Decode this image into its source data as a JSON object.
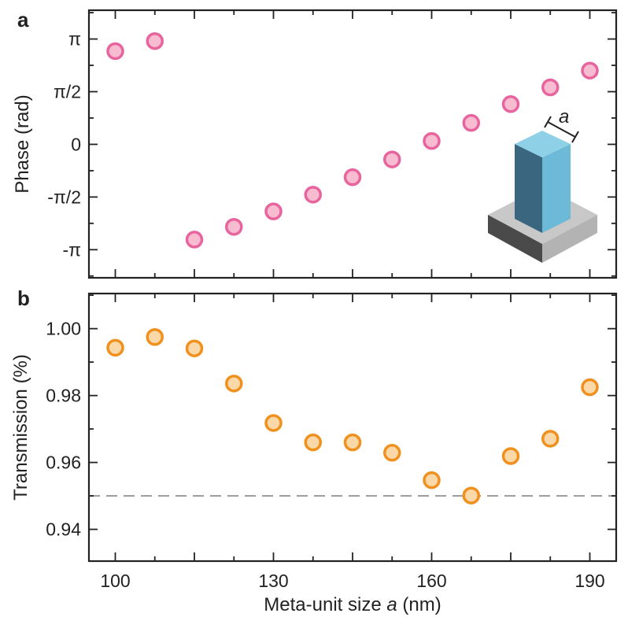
{
  "chart_data": [
    {
      "panel_label": "a",
      "type": "scatter",
      "xlabel": "",
      "ylabel": "Phase (rad)",
      "xlim": [
        95,
        195
      ],
      "ylim": [
        -3.98,
        4.0
      ],
      "yticks": [
        {
          "value": 3.14159,
          "label": "π"
        },
        {
          "value": 1.5708,
          "label": "π/2"
        },
        {
          "value": 0,
          "label": "0"
        },
        {
          "value": -1.5708,
          "label": "-π/2"
        },
        {
          "value": -3.14159,
          "label": "-π"
        }
      ],
      "series": [
        {
          "marker_color": "#e8649e",
          "marker_fill": "#f7bccf",
          "x": [
            100,
            107.5,
            115,
            122.5,
            130,
            137.5,
            145,
            152.5,
            160,
            167.5,
            175,
            182.5,
            190
          ],
          "y": [
            2.78,
            3.08,
            -2.84,
            -2.46,
            -2.0,
            -1.5,
            -0.98,
            -0.45,
            0.1,
            0.64,
            1.2,
            1.7,
            2.2
          ]
        }
      ],
      "inset_label": "a",
      "grid": false
    },
    {
      "panel_label": "b",
      "type": "scatter",
      "xlabel": "Meta-unit size a (nm)",
      "ylabel": "Transmission (%)",
      "xlim": [
        95,
        195
      ],
      "ylim": [
        0.9305,
        1.0105
      ],
      "xticks": [
        100,
        130,
        160,
        190
      ],
      "yticks": [
        {
          "value": 0.94,
          "label": "0.94"
        },
        {
          "value": 0.96,
          "label": "0.96"
        },
        {
          "value": 0.98,
          "label": "0.98"
        },
        {
          "value": 1.0,
          "label": "1.00"
        }
      ],
      "reference_line": {
        "y": 0.95,
        "style": "dashed",
        "color": "#999999"
      },
      "series": [
        {
          "marker_color": "#f0901e",
          "marker_fill": "#fbd8a8",
          "x": [
            100,
            107.5,
            115,
            122.5,
            130,
            137.5,
            145,
            152.5,
            160,
            167.5,
            175,
            182.5,
            190
          ],
          "y": [
            0.9943,
            0.9975,
            0.9941,
            0.9836,
            0.9718,
            0.966,
            0.966,
            0.9629,
            0.9547,
            0.9501,
            0.9619,
            0.9671,
            0.9825
          ]
        }
      ],
      "grid": false
    }
  ],
  "xlabel_parts": {
    "before": "Meta-unit size ",
    "italic": "a",
    "after": " (nm)"
  }
}
